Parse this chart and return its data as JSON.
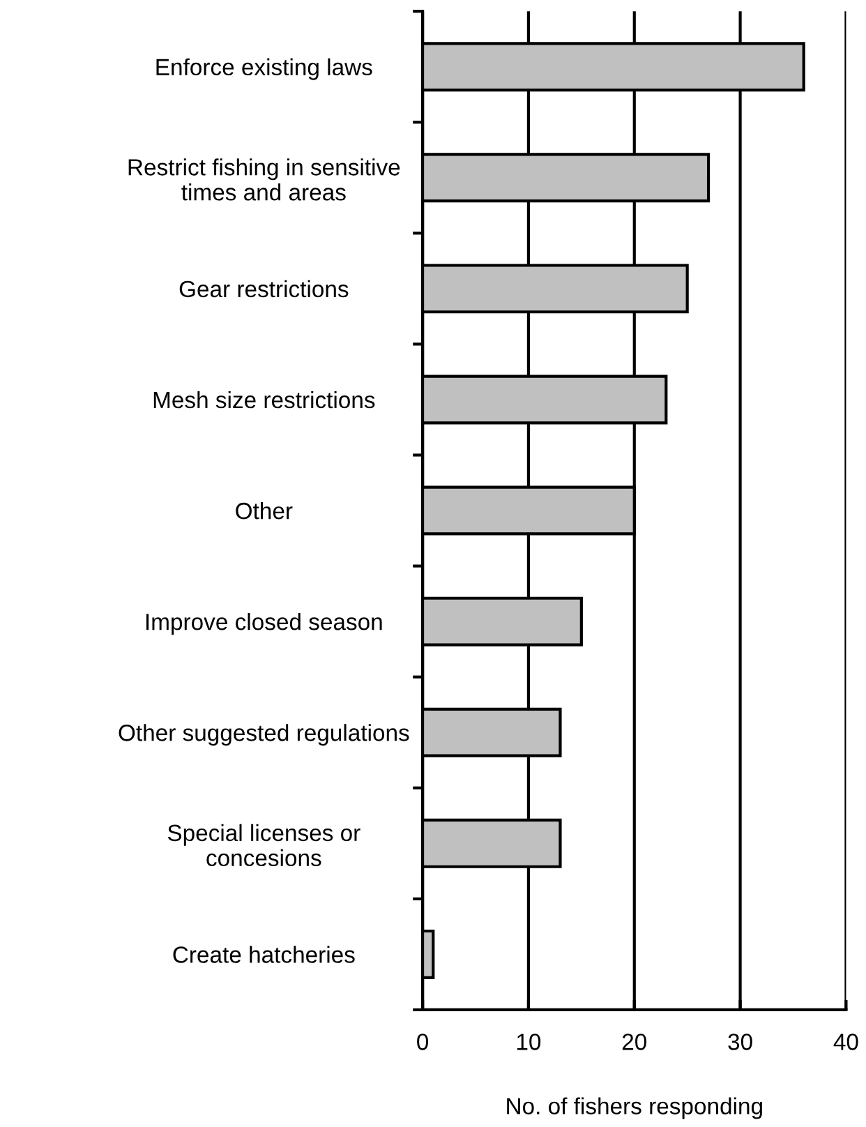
{
  "chart_data": {
    "type": "bar",
    "orientation": "horizontal",
    "xlabel": "No. of fishers responding",
    "categories": [
      "Enforce existing laws",
      "Restrict fishing in sensitive\ntimes and areas",
      "Gear restrictions",
      "Mesh size restrictions",
      "Other",
      "Improve closed season",
      "Other suggested regulations",
      "Special licenses or\nconcesions",
      "Create hatcheries"
    ],
    "values": [
      36,
      27,
      25,
      23,
      20,
      15,
      13,
      13,
      1
    ],
    "color": "#c0c0c0",
    "xlim": [
      0,
      40
    ],
    "xticks": [
      0,
      10,
      20,
      30,
      40
    ],
    "grid": "x"
  }
}
